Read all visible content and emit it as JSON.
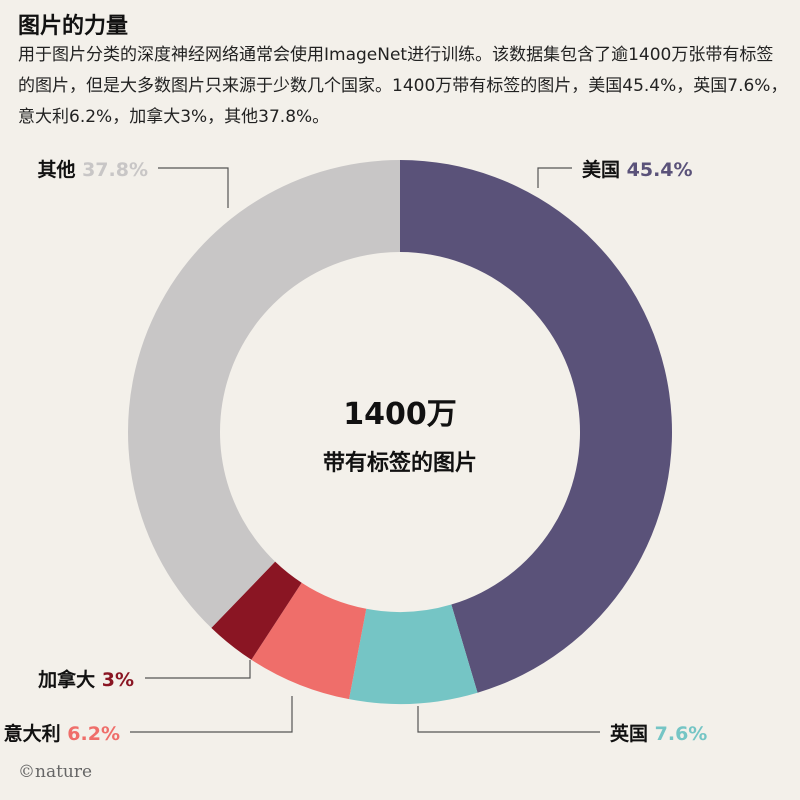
{
  "title": "图片的力量",
  "subtitle": "用于图片分类的深度神经网络通常会使用ImageNet进行训练。该数据集包含了逾1400万张带有标签的图片，但是大多数图片只来源于少数几个国家。1400万带有标签的图片，美国45.4%，英国7.6%，意大利6.2%，加拿大3%，其他37.8%。",
  "center": {
    "value": "1400万",
    "caption": "带有标签的图片"
  },
  "credit": "©nature",
  "chart_data": {
    "type": "pie",
    "donut": true,
    "slices": [
      {
        "name": "美国",
        "value": 45.4,
        "label": "45.4%",
        "color": "#5a5279",
        "text_color": "#5a5279"
      },
      {
        "name": "英国",
        "value": 7.6,
        "label": "7.6%",
        "color": "#75c5c5",
        "text_color": "#75c5c5"
      },
      {
        "name": "意大利",
        "value": 6.2,
        "label": "6.2%",
        "color": "#ef6e6a",
        "text_color": "#ef6e6a"
      },
      {
        "name": "加拿大",
        "value": 3,
        "label": "3%",
        "color": "#8a1523",
        "text_color": "#8a1523"
      },
      {
        "name": "其他",
        "value": 37.8,
        "label": "37.8%",
        "color": "#c8c6c6",
        "text_color": "#c8c6c6"
      }
    ]
  }
}
